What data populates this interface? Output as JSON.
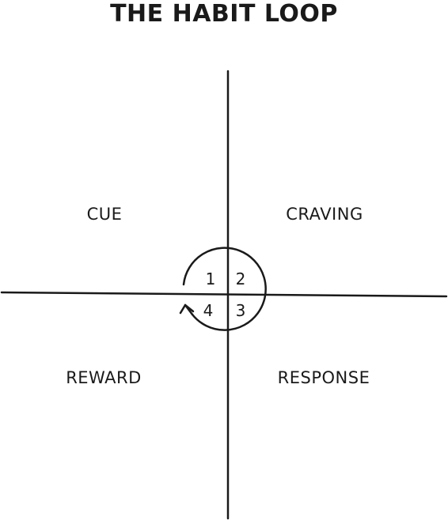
{
  "title": "THE HABIT LOOP",
  "quadrants": {
    "top_left": "CUE",
    "top_right": "CRAVING",
    "bottom_left": "REWARD",
    "bottom_right": "RESPONSE"
  },
  "loop_numbers": {
    "one": "1",
    "two": "2",
    "three": "3",
    "four": "4"
  }
}
